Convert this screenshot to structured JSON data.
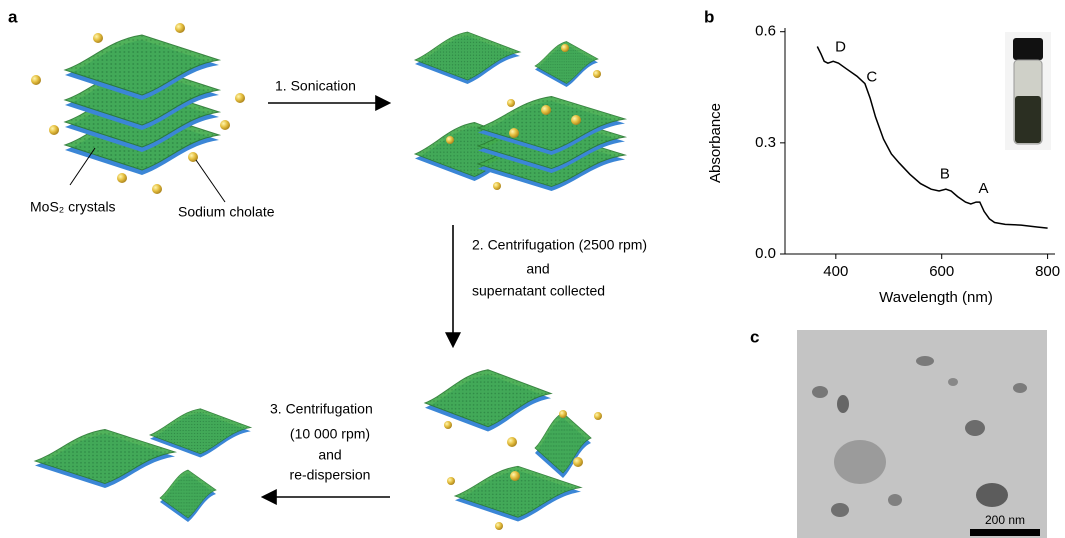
{
  "panel_labels": [
    "a",
    "b",
    "c"
  ],
  "schematic": {
    "crystals_label": "MoS₂ crystals",
    "surfactant_label": "Sodium cholate",
    "step1": "1. Sonication",
    "step2": [
      "2. Centrifugation (2500 rpm)",
      "and",
      "supernatant collected"
    ],
    "step3": [
      "3. Centrifugation",
      "(10 000 rpm)",
      "and",
      "re-dispersion"
    ]
  },
  "chart_data": {
    "type": "line",
    "x_label": "Wavelength (nm)",
    "y_label": "Absorbance",
    "xlim": [
      304,
      814
    ],
    "ylim": [
      0,
      0.61
    ],
    "xticks": [
      400,
      600,
      800
    ],
    "yticks": [
      {
        "value": 0,
        "label": "0.0"
      },
      {
        "value": 0.3,
        "label": "0.3"
      },
      {
        "value": 0.6,
        "label": "0.6"
      }
    ],
    "x": [
      365,
      372,
      378,
      385,
      395,
      405,
      420,
      440,
      455,
      465,
      475,
      490,
      505,
      520,
      540,
      560,
      580,
      595,
      608,
      618,
      630,
      645,
      655,
      665,
      672,
      680,
      690,
      700,
      720,
      750,
      780,
      800
    ],
    "series": [
      {
        "name": "Absorbance",
        "color": "#000000",
        "values": [
          0.56,
          0.54,
          0.52,
          0.515,
          0.52,
          0.515,
          0.5,
          0.48,
          0.46,
          0.42,
          0.37,
          0.31,
          0.27,
          0.245,
          0.215,
          0.19,
          0.175,
          0.17,
          0.175,
          0.17,
          0.155,
          0.14,
          0.135,
          0.14,
          0.14,
          0.115,
          0.095,
          0.085,
          0.08,
          0.078,
          0.073,
          0.07
        ]
      }
    ],
    "annotations": [
      {
        "text": "D",
        "x": 409,
        "y": 0.557
      },
      {
        "text": "C",
        "x": 468,
        "y": 0.476
      },
      {
        "text": "B",
        "x": 606,
        "y": 0.214
      },
      {
        "text": "A",
        "x": 679,
        "y": 0.176
      }
    ]
  },
  "tem": {
    "scale_bar": "200 nm"
  }
}
